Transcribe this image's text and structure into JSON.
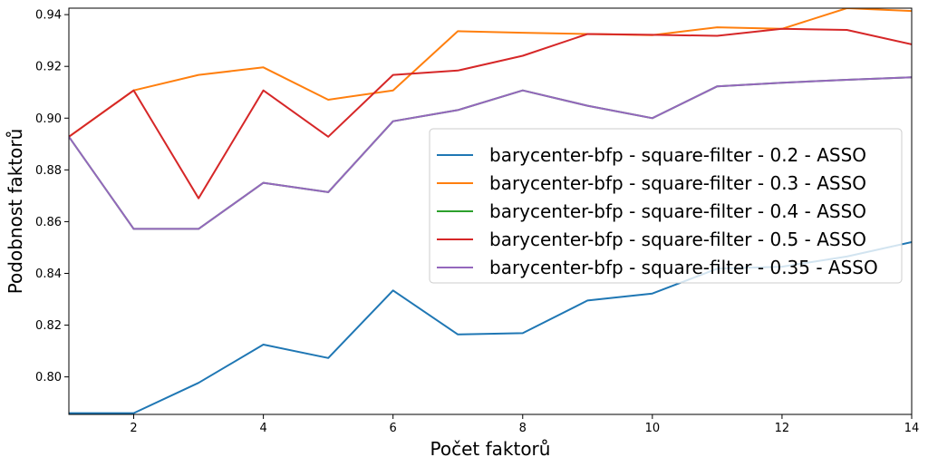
{
  "chart_data": {
    "type": "line",
    "title": "",
    "xlabel": "Počet faktorů",
    "ylabel": "Podobnost faktorů",
    "xlim": [
      1,
      14
    ],
    "ylim": [
      0.7855,
      0.9425
    ],
    "x_ticks": [
      2,
      4,
      6,
      8,
      10,
      12,
      14
    ],
    "y_ticks": [
      0.8,
      0.82,
      0.84,
      0.86,
      0.88,
      0.9,
      0.92,
      0.94
    ],
    "grid": false,
    "legend_position": "center-right",
    "x": [
      1,
      2,
      3,
      4,
      5,
      6,
      7,
      8,
      9,
      10,
      11,
      12,
      13,
      14
    ],
    "series": [
      {
        "name": "barycenter-bfp - square-filter - 0.2 - ASSO",
        "color": "#1f77b4",
        "values": [
          0.786,
          0.786,
          0.7977,
          0.8125,
          0.8073,
          0.8334,
          0.8164,
          0.8169,
          0.8295,
          0.8322,
          0.8418,
          0.8426,
          0.8465,
          0.8521
        ]
      },
      {
        "name": "barycenter-bfp - square-filter - 0.3 - ASSO",
        "color": "#ff7f0e",
        "values": [
          0.8928,
          0.9107,
          0.9167,
          0.9196,
          0.9071,
          0.9107,
          0.9336,
          0.933,
          0.9325,
          0.9321,
          0.9351,
          0.9345,
          0.9425,
          0.9414
        ]
      },
      {
        "name": "barycenter-bfp - square-filter - 0.4 - ASSO",
        "color": "#2ca02c",
        "values": [
          0.8928,
          0.8572,
          0.8572,
          0.875,
          0.8714,
          0.8988,
          0.9031,
          0.9107,
          0.9048,
          0.9,
          0.9123,
          0.9137,
          0.9148,
          0.9158
        ]
      },
      {
        "name": "barycenter-bfp - square-filter - 0.5 - ASSO",
        "color": "#d62728",
        "values": [
          0.8928,
          0.9107,
          0.869,
          0.9107,
          0.8928,
          0.9167,
          0.9184,
          0.9241,
          0.9325,
          0.9322,
          0.9318,
          0.9345,
          0.9341,
          0.9285
        ]
      },
      {
        "name": "barycenter-bfp - square-filter - 0.35 - ASSO",
        "color": "#9467bd",
        "values": [
          0.8928,
          0.8572,
          0.8572,
          0.875,
          0.8714,
          0.8988,
          0.9031,
          0.9107,
          0.9048,
          0.9,
          0.9123,
          0.9137,
          0.9148,
          0.9158
        ]
      }
    ]
  }
}
